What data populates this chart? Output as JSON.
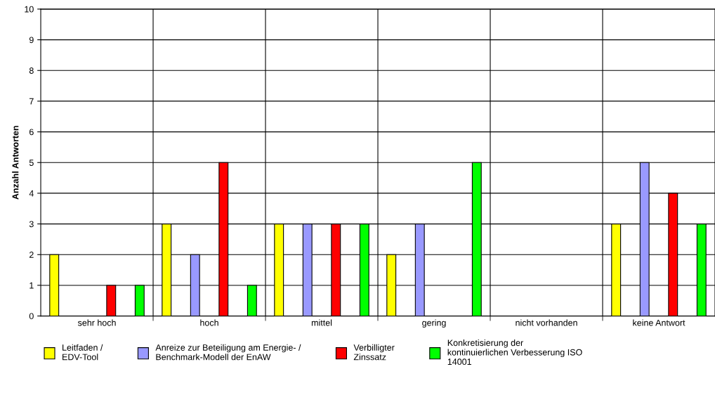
{
  "chart_data": {
    "type": "bar",
    "ylabel": "Anzahl Antworten",
    "categories": [
      "sehr hoch",
      "hoch",
      "mittel",
      "gering",
      "nicht vorhanden",
      "keine Antwort"
    ],
    "series": [
      {
        "name": "Leitfaden /\nEDV-Tool",
        "color": "#ffff00",
        "values": [
          2,
          3,
          3,
          2,
          0,
          3
        ]
      },
      {
        "name": "Anreize zur Beteiligung am Energie- /\nBenchmark-Modell der EnAW",
        "color": "#9999ff",
        "values": [
          0,
          2,
          3,
          3,
          0,
          5
        ]
      },
      {
        "name": "Verbilligter\nZinssatz",
        "color": "#ff0000",
        "values": [
          1,
          5,
          3,
          0,
          0,
          4
        ]
      },
      {
        "name": "Konkretisierung der\nkontinuierlichen Verbesserung ISO\n14001",
        "color": "#00ff00",
        "values": [
          1,
          1,
          3,
          5,
          0,
          3
        ]
      }
    ],
    "ylim": [
      0,
      10
    ],
    "yticks": [
      0,
      1,
      2,
      3,
      4,
      5,
      6,
      7,
      8,
      9,
      10
    ],
    "grid": true,
    "legend": "bottom"
  }
}
